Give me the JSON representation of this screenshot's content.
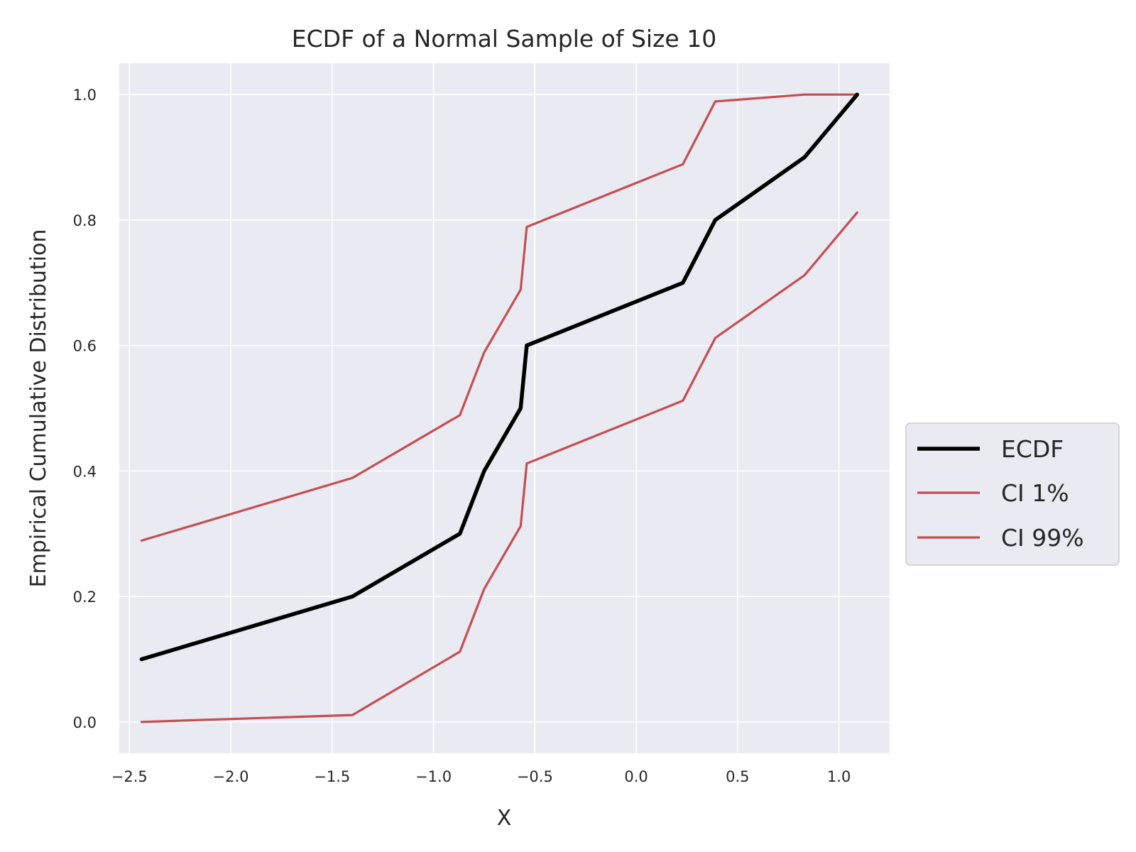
{
  "chart_data": {
    "type": "line",
    "title": "ECDF of a Normal Sample of Size 10",
    "xlabel": "X",
    "ylabel": "Empirical Cumulative Distribution",
    "xlim": [
      -2.55,
      1.25
    ],
    "ylim": [
      -0.05,
      1.05
    ],
    "xticks": [
      -2.5,
      -2.0,
      -1.5,
      -1.0,
      -0.5,
      0.0,
      0.5,
      1.0
    ],
    "xtick_labels": [
      "−2.5",
      "−2.0",
      "−1.5",
      "−1.0",
      "−0.5",
      "0.0",
      "0.5",
      "1.0"
    ],
    "yticks": [
      0.0,
      0.2,
      0.4,
      0.6,
      0.8,
      1.0
    ],
    "ytick_labels": [
      "0.0",
      "0.2",
      "0.4",
      "0.6",
      "0.8",
      "1.0"
    ],
    "grid": true,
    "legend_position": "center-right, outside plot",
    "x": [
      -2.44,
      -1.4,
      -0.87,
      -0.75,
      -0.57,
      -0.54,
      0.23,
      0.39,
      0.83,
      1.09
    ],
    "series": [
      {
        "name": "ECDF",
        "color": "#000000",
        "style": "thick",
        "values": [
          0.1,
          0.2,
          0.3,
          0.4,
          0.5,
          0.6,
          0.7,
          0.8,
          0.9,
          1.0
        ]
      },
      {
        "name": "CI 1%",
        "color": "#c44e52",
        "style": "thin",
        "values": [
          0.0,
          0.011,
          0.112,
          0.212,
          0.312,
          0.412,
          0.512,
          0.612,
          0.712,
          0.812
        ]
      },
      {
        "name": "CI 99%",
        "color": "#c44e52",
        "style": "thin",
        "values": [
          0.289,
          0.389,
          0.489,
          0.589,
          0.689,
          0.789,
          0.889,
          0.989,
          1.0,
          1.0
        ]
      }
    ],
    "colors": {
      "plot_background": "#eaeaf2",
      "grid": "#ffffff",
      "legend_background": "#eaeaf2",
      "legend_border": "#cccccc"
    }
  }
}
